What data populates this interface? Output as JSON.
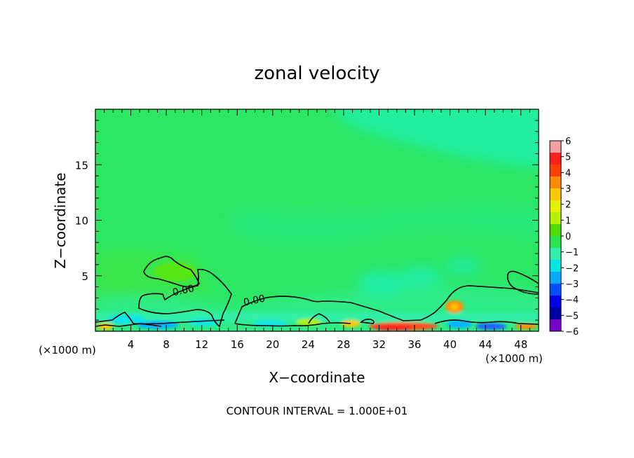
{
  "chart_data": {
    "type": "heatmap",
    "title": "zonal velocity",
    "xlabel": "X−coordinate",
    "ylabel": "Z−coordinate",
    "xlim": [
      0,
      50
    ],
    "ylim": [
      0,
      20
    ],
    "x_ticks": [
      4,
      8,
      12,
      16,
      20,
      24,
      28,
      32,
      36,
      40,
      44,
      48
    ],
    "y_ticks": [
      5,
      10,
      15
    ],
    "x_unit": "(×1000 m)",
    "y_unit": "(×1000 m)",
    "contour_level_label": "0.00",
    "contour_labels": [
      {
        "text": "0.00",
        "x": 10,
        "z": 3.4
      },
      {
        "text": "0.00",
        "x": 18,
        "z": 2.5
      }
    ],
    "footer": "CONTOUR INTERVAL = 1.000E+01",
    "colorbar": {
      "levels": [
        6,
        5,
        4,
        3,
        2,
        1,
        0,
        -1,
        -2,
        -3,
        -4,
        -5,
        -6
      ],
      "tick_labels": [
        "6",
        "5",
        "4",
        "3",
        "2",
        "1",
        "0",
        "−1",
        "−2",
        "−3",
        "−4",
        "−5",
        "−6"
      ],
      "colors": [
        "#f4a0a0",
        "#ff2020",
        "#ff4000",
        "#ff8c00",
        "#ffc800",
        "#e6f000",
        "#b4f000",
        "#50dc00",
        "#28e650",
        "#32f0aa",
        "#00e6e6",
        "#00aaff",
        "#0050ff",
        "#0000e6",
        "#0000aa",
        "#7800c8"
      ]
    }
  }
}
